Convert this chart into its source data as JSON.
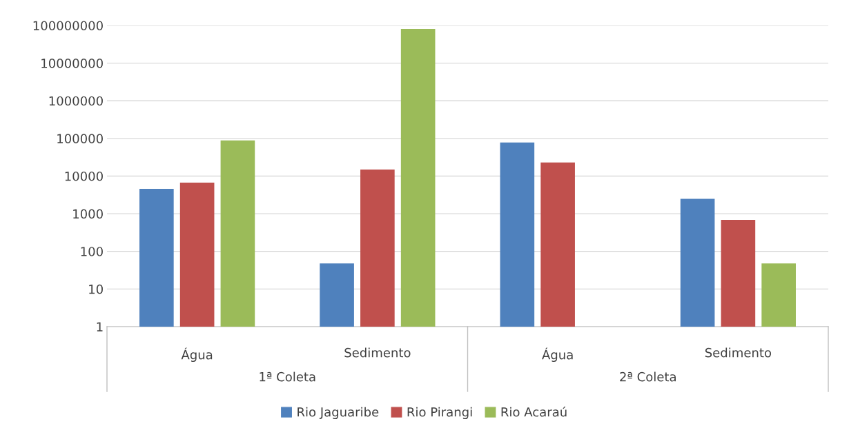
{
  "chart_data": {
    "type": "bar",
    "categories": [
      "Água",
      "Sedimento",
      "Água",
      "Sedimento"
    ],
    "series": [
      {
        "name": "Rio Jaguaribe",
        "color": "#4f81bd",
        "values": [
          4600,
          48,
          78000,
          2500
        ]
      },
      {
        "name": "Rio Pirangi",
        "color": "#c0504d",
        "values": [
          6700,
          15000,
          23000,
          690
        ]
      },
      {
        "name": "Rio Acaraú",
        "color": "#9bbb59",
        "values": [
          89000,
          81000000,
          null,
          48
        ]
      }
    ],
    "annotations": [
      "1ª Coleta",
      "2ª Coleta"
    ],
    "log": "y",
    "ylim": [
      1,
      100000000
    ],
    "yticks": [
      1,
      10,
      100,
      1000,
      10000,
      100000,
      1000000,
      10000000,
      100000000
    ],
    "grid": "y",
    "legend": "bottom"
  }
}
